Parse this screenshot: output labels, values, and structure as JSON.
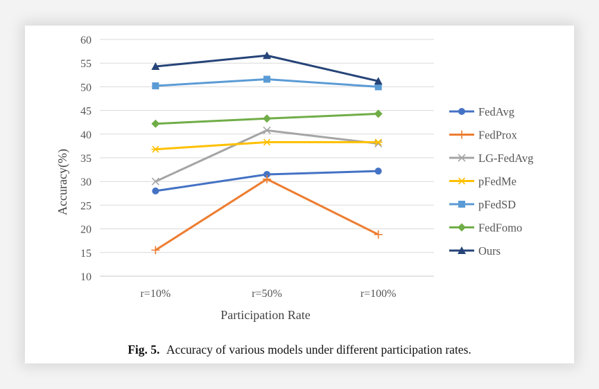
{
  "chart_data": {
    "type": "line",
    "title": "",
    "xlabel": "Participation Rate",
    "ylabel": "Accuracy(%)",
    "categories": [
      "r=10%",
      "r=50%",
      "r=100%"
    ],
    "ylim": [
      10,
      60
    ],
    "yticks": [
      10,
      15,
      20,
      25,
      30,
      35,
      40,
      45,
      50,
      55,
      60
    ],
    "grid": true,
    "legend_position": "right",
    "series": [
      {
        "name": "FedAvg",
        "values": [
          28.0,
          31.5,
          32.2
        ],
        "color": "#4472c4",
        "marker": "circle"
      },
      {
        "name": "FedProx",
        "values": [
          15.5,
          30.5,
          18.8
        ],
        "color": "#ed7d31",
        "marker": "plus"
      },
      {
        "name": "LG-FedAvg",
        "values": [
          30.0,
          40.8,
          38.0
        ],
        "color": "#a5a5a5",
        "marker": "x"
      },
      {
        "name": "pFedMe",
        "values": [
          36.8,
          38.3,
          38.3
        ],
        "color": "#ffc000",
        "marker": "star"
      },
      {
        "name": "pFedSD",
        "values": [
          50.2,
          51.6,
          50.0
        ],
        "color": "#5b9bd5",
        "marker": "square"
      },
      {
        "name": "FedFomo",
        "values": [
          42.2,
          43.3,
          44.3
        ],
        "color": "#70ad47",
        "marker": "diamond"
      },
      {
        "name": "Ours",
        "values": [
          54.3,
          56.6,
          51.2
        ],
        "color": "#264478",
        "marker": "triangle"
      }
    ]
  },
  "caption": {
    "label": "Fig. 5.",
    "text": "Accuracy of various models under different participation rates."
  }
}
